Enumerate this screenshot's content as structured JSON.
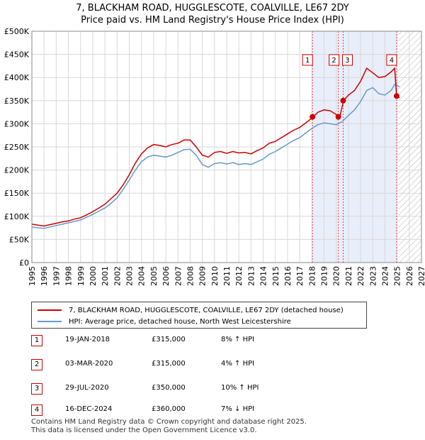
{
  "title_line1": "7, BLACKHAM ROAD, HUGGLESCOTE, COALVILLE, LE67 2DY",
  "title_line2": "Price paid vs. HM Land Registry's House Price Index (HPI)",
  "colors": {
    "price": "#cc0000",
    "hpi": "#6699cc",
    "shade": "#e8eefa",
    "hatch": "#bbbbbb",
    "grid": "#d8d8d8"
  },
  "chart_data": {
    "type": "line",
    "title": "Price paid vs. HM Land Registry's House Price Index (HPI)",
    "xlim": [
      1995,
      2027
    ],
    "ylim": [
      0,
      500000
    ],
    "x_ticks": [
      "1995",
      "1996",
      "1997",
      "1998",
      "1999",
      "2000",
      "2001",
      "2002",
      "2003",
      "2004",
      "2005",
      "2006",
      "2007",
      "2008",
      "2009",
      "2010",
      "2011",
      "2012",
      "2013",
      "2014",
      "2015",
      "2016",
      "2017",
      "2018",
      "2019",
      "2020",
      "2021",
      "2022",
      "2023",
      "2024",
      "2025",
      "2026",
      "2027"
    ],
    "y_ticks": [
      {
        "value": 0,
        "label": "£0"
      },
      {
        "value": 50000,
        "label": "£50K"
      },
      {
        "value": 100000,
        "label": "£100K"
      },
      {
        "value": 150000,
        "label": "£150K"
      },
      {
        "value": 200000,
        "label": "£200K"
      },
      {
        "value": 250000,
        "label": "£250K"
      },
      {
        "value": 300000,
        "label": "£300K"
      },
      {
        "value": 350000,
        "label": "£350K"
      },
      {
        "value": 400000,
        "label": "£400K"
      },
      {
        "value": 450000,
        "label": "£450K"
      },
      {
        "value": 500000,
        "label": "£500K"
      }
    ],
    "series": [
      {
        "name": "7, BLACKHAM ROAD, HUGGLESCOTE, COALVILLE, LE67 2DY (detached house)",
        "color": "#cc0000",
        "points": [
          [
            1995.0,
            83000
          ],
          [
            1995.5,
            81000
          ],
          [
            1996.0,
            79000
          ],
          [
            1996.5,
            82000
          ],
          [
            1997.0,
            85000
          ],
          [
            1997.5,
            88000
          ],
          [
            1998.0,
            90000
          ],
          [
            1998.5,
            94000
          ],
          [
            1999.0,
            97000
          ],
          [
            1999.5,
            103000
          ],
          [
            2000.0,
            110000
          ],
          [
            2000.5,
            118000
          ],
          [
            2001.0,
            126000
          ],
          [
            2001.5,
            138000
          ],
          [
            2002.0,
            150000
          ],
          [
            2002.5,
            168000
          ],
          [
            2003.0,
            190000
          ],
          [
            2003.5,
            215000
          ],
          [
            2004.0,
            235000
          ],
          [
            2004.5,
            248000
          ],
          [
            2005.0,
            255000
          ],
          [
            2005.5,
            253000
          ],
          [
            2006.0,
            250000
          ],
          [
            2006.5,
            255000
          ],
          [
            2007.0,
            258000
          ],
          [
            2007.5,
            265000
          ],
          [
            2008.0,
            265000
          ],
          [
            2008.5,
            250000
          ],
          [
            2009.0,
            232000
          ],
          [
            2009.5,
            228000
          ],
          [
            2010.0,
            238000
          ],
          [
            2010.5,
            240000
          ],
          [
            2011.0,
            236000
          ],
          [
            2011.5,
            240000
          ],
          [
            2012.0,
            237000
          ],
          [
            2012.5,
            238000
          ],
          [
            2013.0,
            235000
          ],
          [
            2013.5,
            242000
          ],
          [
            2014.0,
            248000
          ],
          [
            2014.5,
            258000
          ],
          [
            2015.0,
            262000
          ],
          [
            2015.5,
            270000
          ],
          [
            2016.0,
            278000
          ],
          [
            2016.5,
            286000
          ],
          [
            2017.0,
            292000
          ],
          [
            2017.5,
            302000
          ],
          [
            2018.0,
            312000
          ],
          [
            2018.5,
            325000
          ],
          [
            2019.0,
            330000
          ],
          [
            2019.5,
            328000
          ],
          [
            2020.0,
            320000
          ],
          [
            2020.3,
            315000
          ],
          [
            2020.6,
            350000
          ],
          [
            2021.0,
            362000
          ],
          [
            2021.5,
            372000
          ],
          [
            2022.0,
            392000
          ],
          [
            2022.5,
            420000
          ],
          [
            2023.0,
            410000
          ],
          [
            2023.5,
            400000
          ],
          [
            2024.0,
            402000
          ],
          [
            2024.5,
            412000
          ],
          [
            2024.8,
            420000
          ],
          [
            2024.96,
            360000
          ],
          [
            2025.2,
            356000
          ]
        ]
      },
      {
        "name": "HPI: Average price, detached house, North West Leicestershire",
        "color": "#6699cc",
        "points": [
          [
            1995.0,
            77000
          ],
          [
            1995.5,
            75000
          ],
          [
            1996.0,
            74000
          ],
          [
            1996.5,
            77000
          ],
          [
            1997.0,
            80000
          ],
          [
            1997.5,
            83000
          ],
          [
            1998.0,
            86000
          ],
          [
            1998.5,
            89000
          ],
          [
            1999.0,
            92000
          ],
          [
            1999.5,
            98000
          ],
          [
            2000.0,
            104000
          ],
          [
            2000.5,
            111000
          ],
          [
            2001.0,
            118000
          ],
          [
            2001.5,
            128000
          ],
          [
            2002.0,
            140000
          ],
          [
            2002.5,
            158000
          ],
          [
            2003.0,
            178000
          ],
          [
            2003.5,
            200000
          ],
          [
            2004.0,
            218000
          ],
          [
            2004.5,
            228000
          ],
          [
            2005.0,
            232000
          ],
          [
            2005.5,
            230000
          ],
          [
            2006.0,
            228000
          ],
          [
            2006.5,
            232000
          ],
          [
            2007.0,
            238000
          ],
          [
            2007.5,
            244000
          ],
          [
            2008.0,
            245000
          ],
          [
            2008.5,
            232000
          ],
          [
            2009.0,
            212000
          ],
          [
            2009.5,
            206000
          ],
          [
            2010.0,
            214000
          ],
          [
            2010.5,
            216000
          ],
          [
            2011.0,
            213000
          ],
          [
            2011.5,
            216000
          ],
          [
            2012.0,
            212000
          ],
          [
            2012.5,
            214000
          ],
          [
            2013.0,
            212000
          ],
          [
            2013.5,
            218000
          ],
          [
            2014.0,
            224000
          ],
          [
            2014.5,
            234000
          ],
          [
            2015.0,
            240000
          ],
          [
            2015.5,
            248000
          ],
          [
            2016.0,
            256000
          ],
          [
            2016.5,
            264000
          ],
          [
            2017.0,
            270000
          ],
          [
            2017.5,
            280000
          ],
          [
            2018.0,
            290000
          ],
          [
            2018.5,
            298000
          ],
          [
            2019.0,
            302000
          ],
          [
            2019.5,
            300000
          ],
          [
            2020.0,
            298000
          ],
          [
            2020.5,
            305000
          ],
          [
            2021.0,
            318000
          ],
          [
            2021.5,
            330000
          ],
          [
            2022.0,
            348000
          ],
          [
            2022.5,
            372000
          ],
          [
            2023.0,
            378000
          ],
          [
            2023.5,
            365000
          ],
          [
            2024.0,
            362000
          ],
          [
            2024.5,
            372000
          ],
          [
            2024.8,
            385000
          ],
          [
            2025.2,
            380000
          ]
        ]
      }
    ],
    "sales": [
      {
        "n": "1",
        "x": 2018.05,
        "price": 315000
      },
      {
        "n": "2",
        "x": 2020.17,
        "price": 315000
      },
      {
        "n": "3",
        "x": 2020.57,
        "price": 350000
      },
      {
        "n": "4",
        "x": 2024.96,
        "price": 360000
      }
    ],
    "shaded_ranges": [
      [
        2018.05,
        2024.96
      ]
    ],
    "future_from": 2025.1
  },
  "legend": {
    "price_label": "7, BLACKHAM ROAD, HUGGLESCOTE, COALVILLE, LE67 2DY (detached house)",
    "hpi_label": "HPI: Average price, detached house, North West Leicestershire"
  },
  "transactions": [
    {
      "n": "1",
      "date": "19-JAN-2018",
      "price": "£315,000",
      "hpi": "8% ↑ HPI"
    },
    {
      "n": "2",
      "date": "03-MAR-2020",
      "price": "£315,000",
      "hpi": "4% ↑ HPI"
    },
    {
      "n": "3",
      "date": "29-JUL-2020",
      "price": "£350,000",
      "hpi": "10% ↑ HPI"
    },
    {
      "n": "4",
      "date": "16-DEC-2024",
      "price": "£360,000",
      "hpi": "7% ↓ HPI"
    }
  ],
  "footer_line1": "Contains HM Land Registry data © Crown copyright and database right 2025.",
  "footer_line2": "This data is licensed under the Open Government Licence v3.0."
}
